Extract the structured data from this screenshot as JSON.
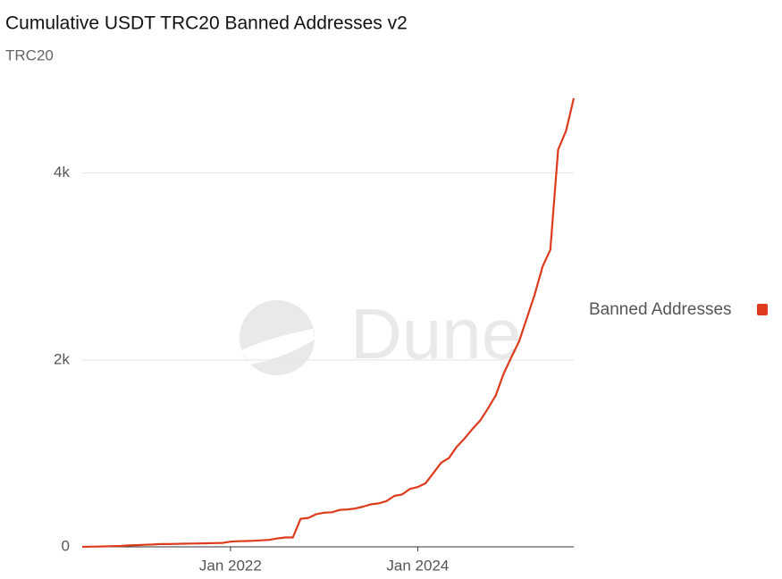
{
  "chart_data": {
    "type": "line",
    "title": "Cumulative USDT TRC20 Banned Addresses v2",
    "subtitle": "TRC20",
    "watermark": "Dune",
    "x": [
      "2020-06",
      "2020-07",
      "2020-08",
      "2020-09",
      "2020-10",
      "2020-11",
      "2020-12",
      "2021-01",
      "2021-02",
      "2021-03",
      "2021-04",
      "2021-05",
      "2021-06",
      "2021-07",
      "2021-08",
      "2021-09",
      "2021-10",
      "2021-11",
      "2021-12",
      "2022-01",
      "2022-02",
      "2022-03",
      "2022-04",
      "2022-05",
      "2022-06",
      "2022-07",
      "2022-08",
      "2022-09",
      "2022-10",
      "2022-11",
      "2022-12",
      "2023-01",
      "2023-02",
      "2023-03",
      "2023-04",
      "2023-05",
      "2023-06",
      "2023-07",
      "2023-08",
      "2023-09",
      "2023-10",
      "2023-11",
      "2023-12",
      "2024-01",
      "2024-02",
      "2024-03",
      "2024-04",
      "2024-05",
      "2024-06",
      "2024-07",
      "2024-08",
      "2024-09",
      "2024-10",
      "2024-11",
      "2024-12",
      "2025-01",
      "2025-02",
      "2025-03",
      "2025-04",
      "2025-05",
      "2025-06",
      "2025-07",
      "2025-08",
      "2025-09"
    ],
    "series": [
      {
        "name": "Banned Addresses",
        "color": "#dd3b1c",
        "values": [
          0,
          2,
          3,
          5,
          8,
          10,
          15,
          18,
          22,
          25,
          30,
          30,
          32,
          33,
          35,
          36,
          38,
          40,
          42,
          55,
          60,
          62,
          65,
          70,
          75,
          90,
          100,
          100,
          300,
          310,
          350,
          365,
          370,
          395,
          400,
          410,
          430,
          455,
          465,
          490,
          545,
          560,
          620,
          640,
          680,
          790,
          900,
          950,
          1070,
          1160,
          1260,
          1350,
          1480,
          1620,
          1850,
          2030,
          2200,
          2450,
          2700,
          3000,
          3180,
          4250,
          4450,
          4800
        ]
      }
    ],
    "xlim": [
      "2020-06",
      "2025-09"
    ],
    "xticks": [
      {
        "value": "2022-01",
        "label": "Jan 2022"
      },
      {
        "value": "2024-01",
        "label": "Jan 2024"
      }
    ],
    "ylim": [
      0,
      4800
    ],
    "yticks": [
      0,
      {
        "value": 2000,
        "label": "2k"
      },
      {
        "value": 4000,
        "label": "4k"
      }
    ],
    "grid": true,
    "legend": "right"
  }
}
